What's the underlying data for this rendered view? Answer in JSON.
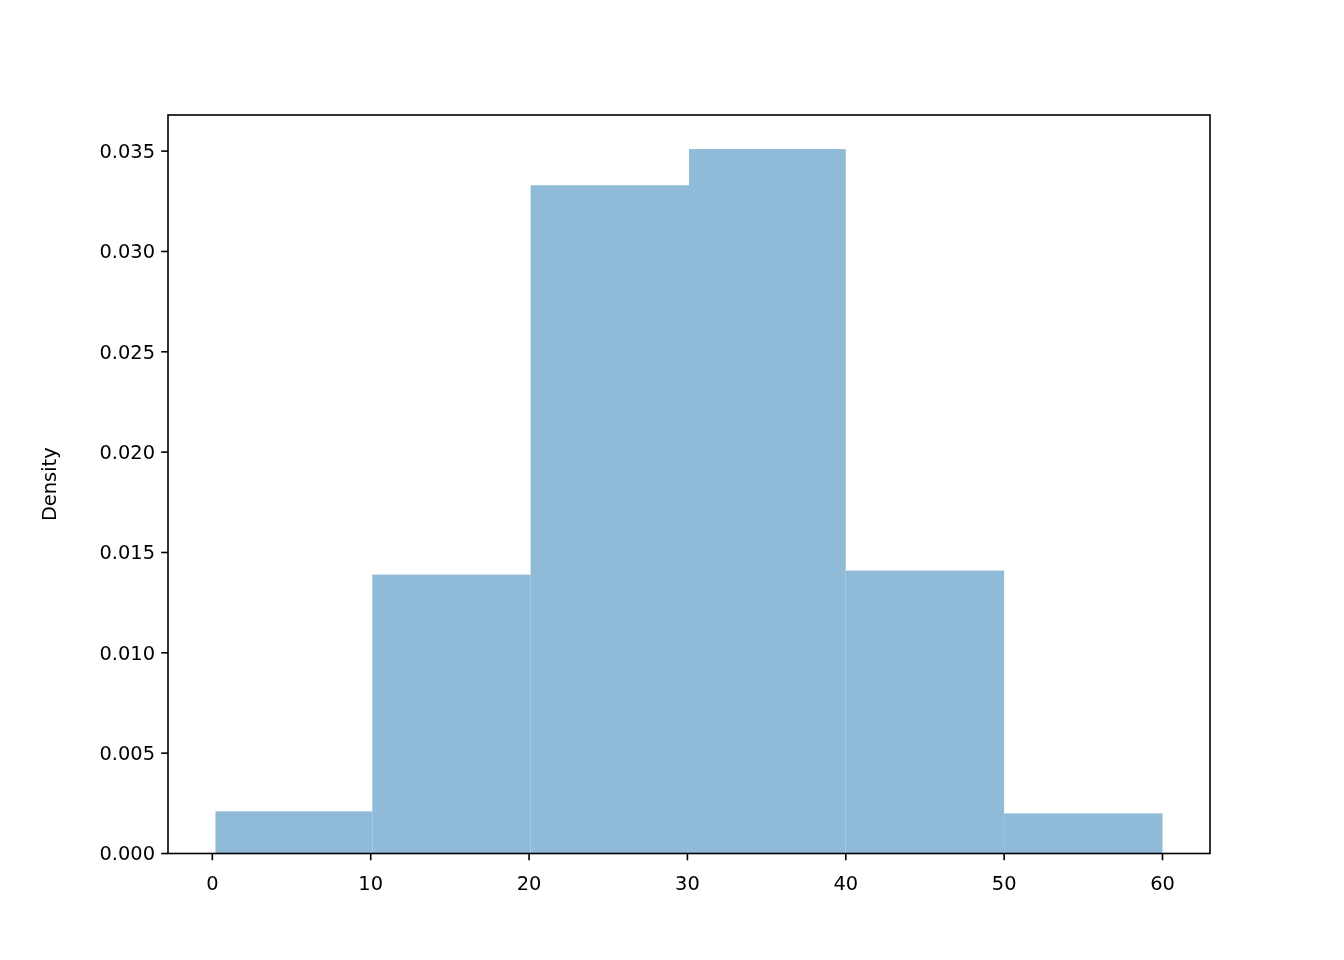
{
  "chart_data": {
    "type": "histogram",
    "ylabel": "Density",
    "bins": [
      0.2,
      10.1,
      20.1,
      30.1,
      40.0,
      50.0,
      60.0
    ],
    "values": [
      0.0021,
      0.0139,
      0.0333,
      0.0351,
      0.0141,
      0.002
    ],
    "color": "#8fbbd9",
    "xlim": [
      -2.8,
      63.0
    ],
    "xticks": [
      0,
      10,
      20,
      30,
      40,
      50,
      60
    ],
    "ylim": [
      0,
      0.0368
    ],
    "yticks": [
      {
        "value": 0,
        "label": "0.000"
      },
      {
        "value": 0.005,
        "label": "0.005"
      },
      {
        "value": 0.01,
        "label": "0.010"
      },
      {
        "value": 0.015,
        "label": "0.015"
      },
      {
        "value": 0.02,
        "label": "0.020"
      },
      {
        "value": 0.025,
        "label": "0.025"
      },
      {
        "value": 0.03,
        "label": "0.030"
      },
      {
        "value": 0.035,
        "label": "0.035"
      }
    ],
    "grid": false
  }
}
